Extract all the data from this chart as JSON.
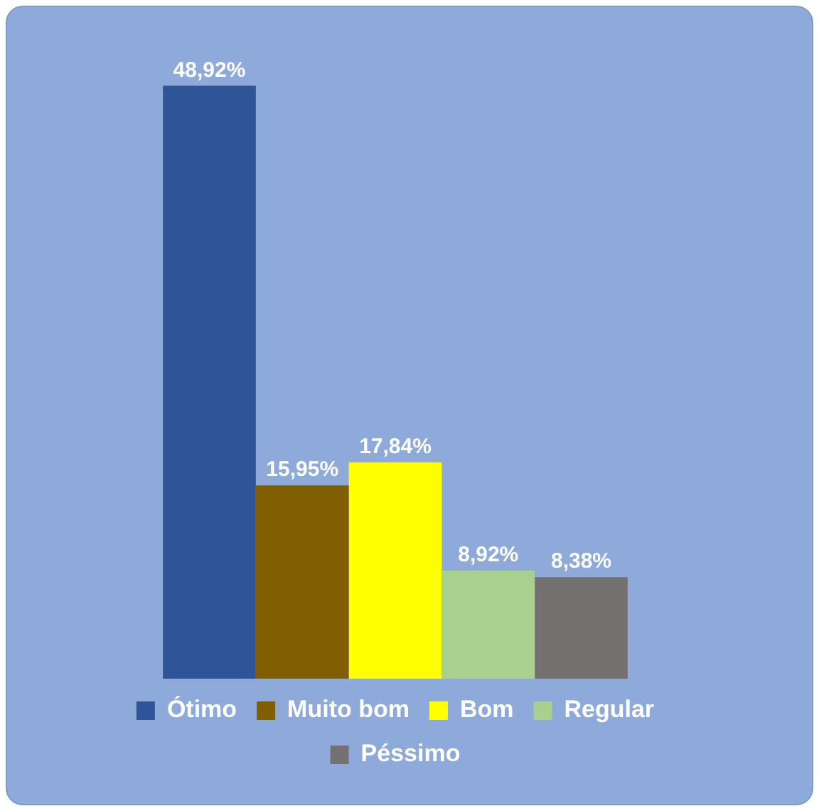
{
  "chart_data": {
    "type": "bar",
    "categories": [
      null
    ],
    "legend": "bottom",
    "series": [
      {
        "name": "Ótimo",
        "color": "#2e5597",
        "values": [
          48.92
        ],
        "value_labels": [
          "48,92%"
        ]
      },
      {
        "name": "Muito bom",
        "color": "#7f5f00",
        "values": [
          15.95
        ],
        "value_labels": [
          "15,95%"
        ]
      },
      {
        "name": "Bom",
        "color": "#ffff00",
        "values": [
          17.84
        ],
        "value_labels": [
          "17,84%"
        ]
      },
      {
        "name": "Regular",
        "color": "#a9d08e",
        "values": [
          8.92
        ],
        "value_labels": [
          "8,92%"
        ]
      },
      {
        "name": "Péssimo",
        "color": "#767171",
        "values": [
          8.38
        ],
        "value_labels": [
          "8,38%"
        ]
      }
    ]
  }
}
